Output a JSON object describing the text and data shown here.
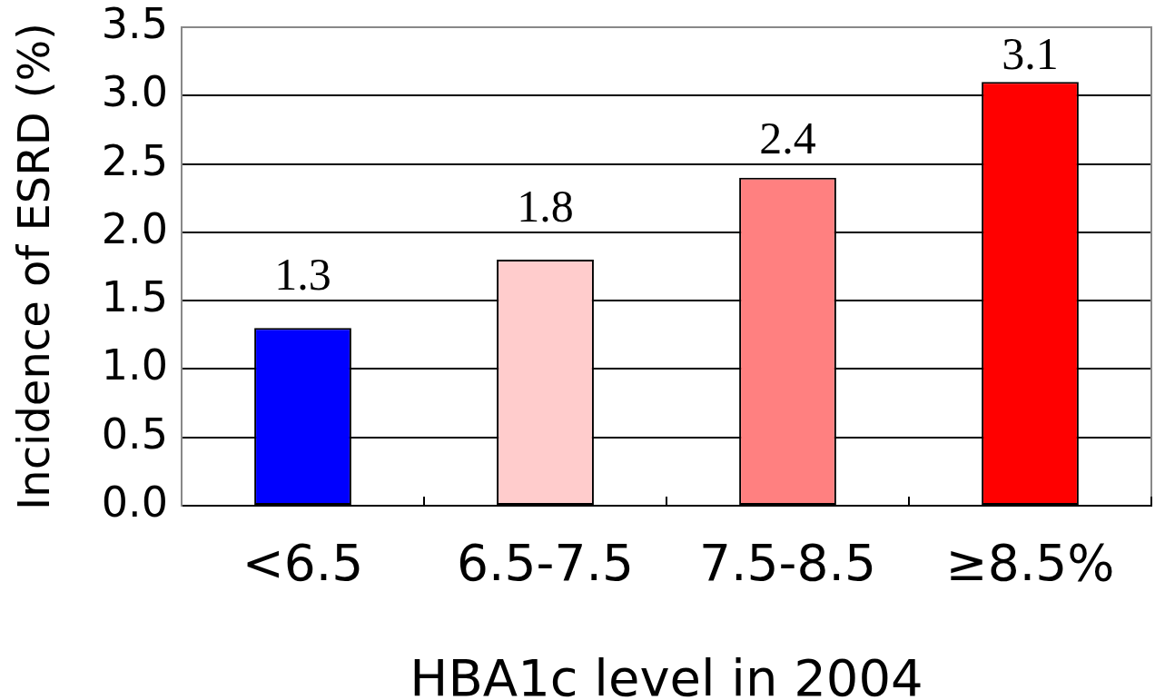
{
  "chart_data": {
    "type": "bar",
    "xlabel": "HBA1c level in 2004",
    "ylabel": "Incidence of ESRD (%)",
    "categories": [
      "<6.5",
      "6.5-7.5",
      "7.5-8.5",
      "≥8.5%"
    ],
    "values": [
      1.3,
      1.8,
      2.4,
      3.1
    ],
    "colors": [
      "#0000ff",
      "#ffcccc",
      "#ff8080",
      "#ff0000"
    ],
    "ylim": [
      0,
      3.5
    ],
    "yticks": [
      {
        "value": 0,
        "label": "0.0"
      },
      0.5,
      {
        "value": 1,
        "label": "1.0"
      },
      1.5,
      {
        "value": 2,
        "label": "2.0"
      },
      2.5,
      {
        "value": 3,
        "label": "3.0"
      },
      3.5
    ],
    "grid": "y",
    "data_labels": true
  }
}
